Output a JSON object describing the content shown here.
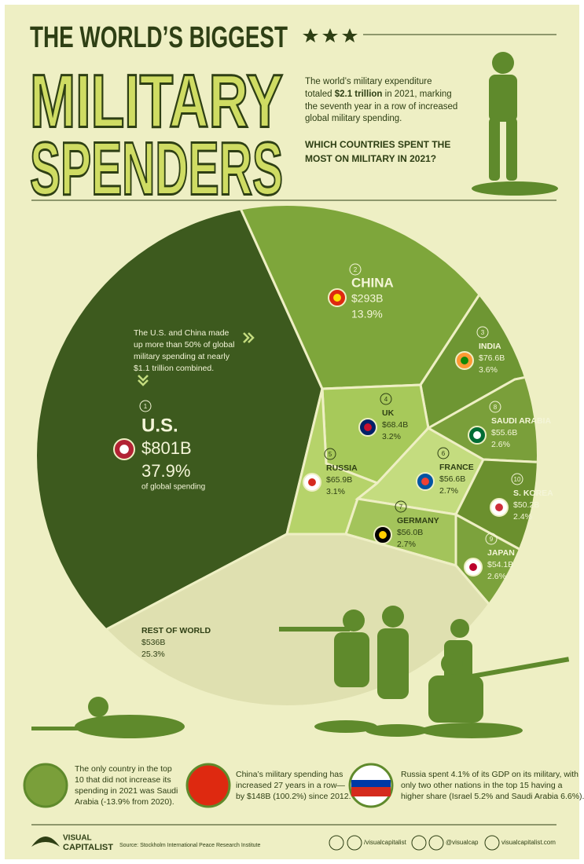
{
  "header": {
    "title_line1": "THE WORLD’S BIGGEST",
    "title_line2": "MILITARY",
    "title_line3": "SPENDERS",
    "intro": {
      "line1": "The world’s military expenditure",
      "line2_before": "totaled ",
      "line2_bold": "$2.1 trillion",
      "line2_after": " in 2021, marking",
      "line3": "the seventh year in a row of increased",
      "line4": "global military spending."
    },
    "question": [
      "WHICH COUNTRIES SPENT THE",
      "MOST ON MILITARY IN 2021?"
    ]
  },
  "callout": [
    "The U.S. and China made",
    "up more than 50% of global",
    "military spending at nearly",
    "$1.1 trillion combined."
  ],
  "us_note": "of global spending",
  "countries": [
    {
      "rank": "1",
      "name": "U.S.",
      "amount": "$801B",
      "share": "37.9%"
    },
    {
      "rank": "2",
      "name": "CHINA",
      "amount": "$293B",
      "share": "13.9%"
    },
    {
      "rank": "3",
      "name": "INDIA",
      "amount": "$76.6B",
      "share": "3.6%"
    },
    {
      "rank": "4",
      "name": "UK",
      "amount": "$68.4B",
      "share": "3.2%"
    },
    {
      "rank": "5",
      "name": "RUSSIA",
      "amount": "$65.9B",
      "share": "3.1%"
    },
    {
      "rank": "6",
      "name": "FRANCE",
      "amount": "$56.6B",
      "share": "2.7%"
    },
    {
      "rank": "7",
      "name": "GERMANY",
      "amount": "$56.0B",
      "share": "2.7%"
    },
    {
      "rank": "8",
      "name": "SAUDI ARABIA",
      "amount": "$55.6B",
      "share": "2.6%"
    },
    {
      "rank": "9",
      "name": "JAPAN",
      "amount": "$54.1B",
      "share": "2.6%"
    },
    {
      "rank": "10",
      "name": "S. KOREA",
      "amount": "$50.2B",
      "share": "2.4%"
    }
  ],
  "rest_of_world": {
    "name": "REST OF WORLD",
    "amount": "$536B",
    "share": "25.3%"
  },
  "facts": [
    [
      "The only country in the top",
      "10 that did not increase its",
      "spending in 2021 was Saudi",
      "Arabia (-13.9% from 2020)."
    ],
    [
      "China’s military spending has",
      "increased 27 years in a row—",
      "by $148B (100.2%) since 2012."
    ],
    [
      "Russia spent 4.1% of its GDP on its military, with",
      "only two other nations in the top 15 having a",
      "higher share (Israel 5.2% and Saudi Arabia 6.6%)."
    ]
  ],
  "footer": {
    "brand_line1": "VISUAL",
    "brand_line2": "CAPITALIST",
    "source": "Source: Stockholm International Peace Research Institute",
    "social": [
      "/visualcapitalist",
      "@visualcap",
      "visualcapitalist.com"
    ]
  }
}
